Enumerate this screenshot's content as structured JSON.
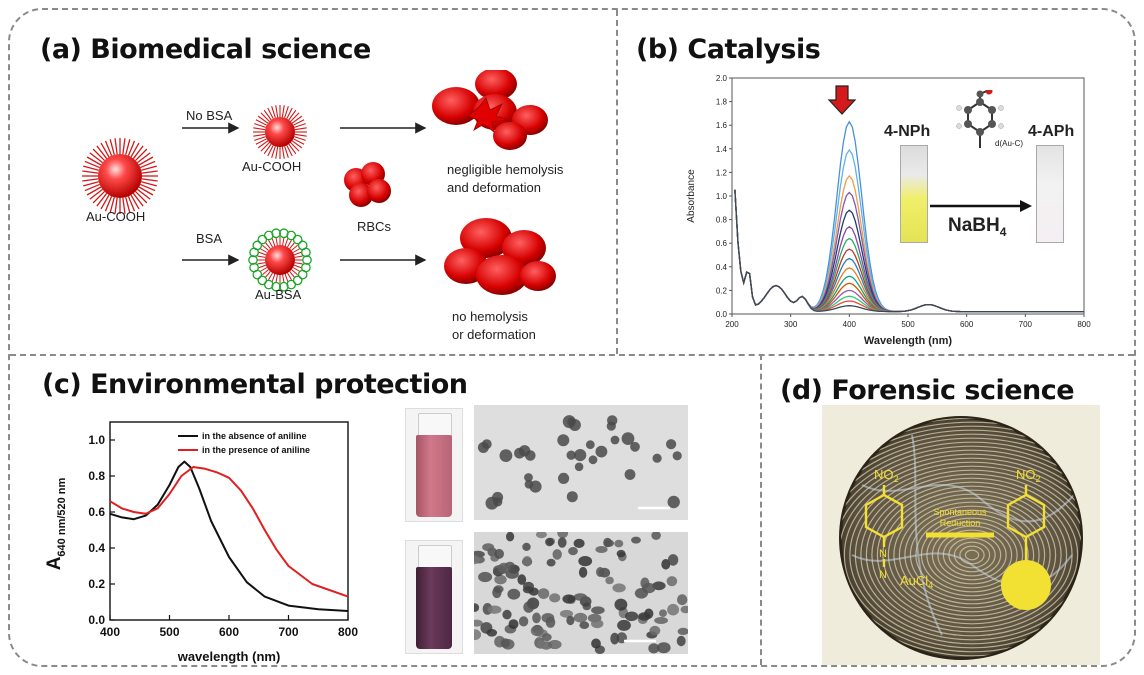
{
  "panels": {
    "a": {
      "title": "(a) Biomedical science",
      "labels": {
        "au_cooh_left": "Au-COOH",
        "no_bsa": "No BSA",
        "au_cooh_top": "Au-COOH",
        "bsa": "BSA",
        "au_bsa": "Au-BSA",
        "rbcs": "RBCs",
        "negligible_1": "negligible hemolysis",
        "negligible_2": "and deformation",
        "no_hemolysis_1": "no hemolysis",
        "no_hemolysis_2": "or deformation"
      }
    },
    "b": {
      "title": "(b) Catalysis",
      "inset": {
        "left": "4-NPh",
        "right": "4-APh",
        "reagent": "NaBH",
        "reagent_sub": "4",
        "bond": "d(Au-C)"
      }
    },
    "c": {
      "title": "(c) Environmental protection"
    },
    "d": {
      "title": "(d) Forensic science",
      "labels": {
        "no2_left": "NO",
        "no2_right": "NO",
        "no2_sub": "2",
        "spont_1": "Spontaneous",
        "spont_2": "Reduction",
        "aucl": "AuCl",
        "aucl_sub": "4",
        "n1": "N",
        "n2": "N"
      }
    }
  },
  "colors": {
    "red": "#e01f1f",
    "black": "#111111",
    "yellow": "#f2e033"
  },
  "chart_data": [
    {
      "id": "catalysis-absorbance",
      "type": "line",
      "xlabel": "Wavelength (nm)",
      "ylabel": "Absorbance",
      "xlim": [
        200,
        800
      ],
      "ylim": [
        0,
        2.0
      ],
      "xticks": [
        200,
        300,
        400,
        500,
        600,
        700,
        800
      ],
      "yticks": [
        0.0,
        0.2,
        0.4,
        0.6,
        0.8,
        1.0,
        1.2,
        1.4,
        1.6,
        1.8,
        2.0
      ],
      "series_peaks_at_400nm": [
        1.61,
        1.37,
        1.15,
        1.01,
        0.86,
        0.72,
        0.62,
        0.53,
        0.45,
        0.37,
        0.3,
        0.24,
        0.18,
        0.13,
        0.09,
        0.05
      ],
      "series_colors": [
        "#4a90d9",
        "#5fb3e6",
        "#f39c4a",
        "#7f5aa8",
        "#1f3b73",
        "#8e44ad",
        "#27ae60",
        "#c0392b",
        "#2980b9",
        "#e67e22",
        "#16a085",
        "#d35400",
        "#9b59b6",
        "#2ecc71",
        "#e74c3c",
        "#34495e"
      ],
      "grid": false,
      "legend": "none"
    },
    {
      "id": "aniline-absorbance",
      "type": "line",
      "xlabel": "wavelength (nm)",
      "ylabel": "A",
      "ylabel_sub": "640 nm/520 nm",
      "xlim": [
        400,
        800
      ],
      "ylim": [
        0,
        1.1
      ],
      "xticks": [
        400,
        500,
        600,
        700,
        800
      ],
      "yticks": [
        0.0,
        0.2,
        0.4,
        0.6,
        0.8,
        1.0
      ],
      "legend": "top-right",
      "series": [
        {
          "name": "in the absence of aniline",
          "color": "#111111",
          "x": [
            400,
            420,
            440,
            460,
            480,
            500,
            515,
            525,
            535,
            550,
            570,
            600,
            630,
            660,
            700,
            750,
            800
          ],
          "y": [
            0.59,
            0.57,
            0.56,
            0.58,
            0.64,
            0.75,
            0.85,
            0.88,
            0.85,
            0.73,
            0.55,
            0.35,
            0.21,
            0.13,
            0.08,
            0.06,
            0.05
          ]
        },
        {
          "name": "in the presence of aniline",
          "color": "#e01f1f",
          "x": [
            400,
            420,
            440,
            460,
            480,
            500,
            520,
            540,
            560,
            580,
            600,
            620,
            640,
            660,
            680,
            700,
            740,
            800
          ],
          "y": [
            0.66,
            0.62,
            0.6,
            0.59,
            0.62,
            0.7,
            0.8,
            0.85,
            0.84,
            0.82,
            0.79,
            0.72,
            0.62,
            0.5,
            0.39,
            0.3,
            0.2,
            0.13
          ]
        }
      ]
    }
  ]
}
